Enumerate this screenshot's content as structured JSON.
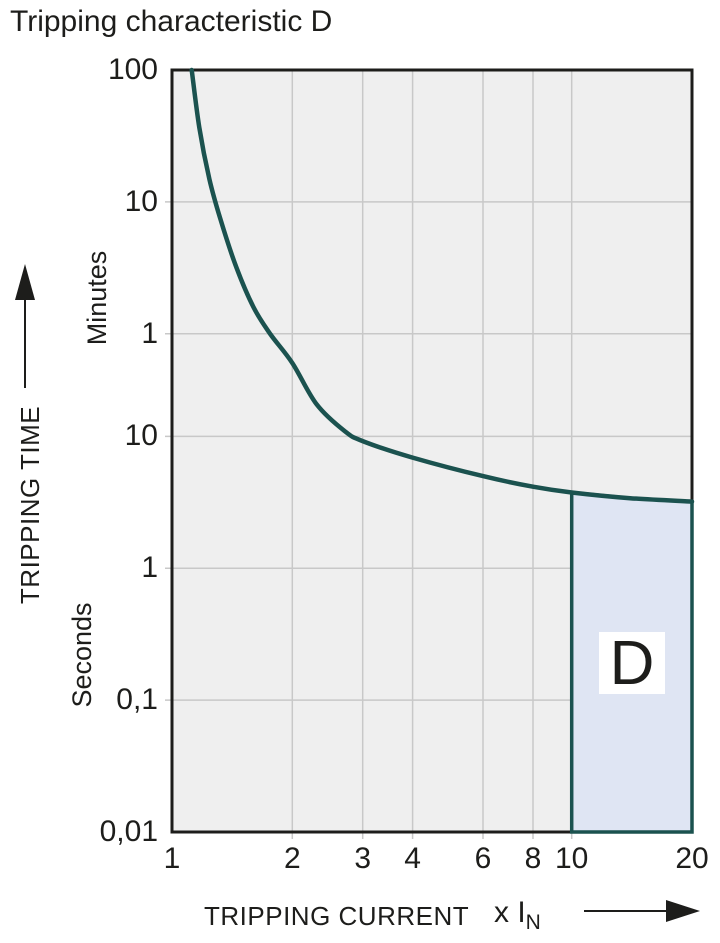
{
  "title": "Tripping characteristic D",
  "labels": {
    "y_axis_title": "TRIPPING TIME",
    "x_axis_title": "TRIPPING CURRENT",
    "x_unit_prefix": "x I",
    "x_unit_sub": "N",
    "minutes": "Minutes",
    "seconds": "Seconds",
    "region": "D"
  },
  "chart_data": {
    "type": "line",
    "title": "Tripping characteristic D",
    "x_axis": {
      "title": "TRIPPING CURRENT",
      "unit": "x IN",
      "scale": "log",
      "min": 1,
      "max": 20,
      "tick_labels": [
        "1",
        "2",
        "3",
        "4",
        "6",
        "8",
        "10",
        "20"
      ],
      "tick_values": [
        1,
        2,
        3,
        4,
        6,
        8,
        10,
        20
      ],
      "gridlines": [
        2,
        3,
        4,
        6,
        8,
        10
      ]
    },
    "y_axis": {
      "title": "TRIPPING TIME",
      "scale": "log",
      "min_seconds": 0.01,
      "max_seconds": 6000,
      "tick_labels": [
        "100",
        "10",
        "1",
        "10",
        "1",
        "0,1",
        "0,01"
      ],
      "tick_values_seconds": [
        6000,
        600,
        60,
        10,
        1,
        0.1,
        0.01
      ],
      "gridlines_seconds": [
        600,
        60,
        10,
        1,
        0.1
      ],
      "unit_sections": [
        {
          "label": "Minutes",
          "range_seconds": [
            60,
            6000
          ]
        },
        {
          "label": "Seconds",
          "range_seconds": [
            0.01,
            60
          ]
        }
      ]
    },
    "series": [
      {
        "name": "tripping-curve",
        "points_x_time_seconds": [
          [
            1.12,
            6000
          ],
          [
            1.17,
            2200
          ],
          [
            1.24,
            900
          ],
          [
            1.32,
            450
          ],
          [
            1.45,
            190
          ],
          [
            1.6,
            95
          ],
          [
            1.76,
            60
          ],
          [
            2.0,
            36
          ],
          [
            2.3,
            17.5
          ],
          [
            2.7,
            11
          ],
          [
            3.0,
            9.2
          ],
          [
            4.0,
            6.9
          ],
          [
            6.0,
            5.0
          ],
          [
            8.0,
            4.15
          ],
          [
            10.0,
            3.75
          ],
          [
            14.0,
            3.4
          ],
          [
            20.0,
            3.2
          ]
        ]
      }
    ],
    "region": {
      "label": "D",
      "x_from": 10,
      "x_to": 20,
      "time_from_seconds": 0.01,
      "top_boundary": "curve"
    },
    "grid": true,
    "legend": "none",
    "colors": {
      "curve": "#1b524f",
      "region_fill": "#dfe5f3",
      "region_border": "#1b524f",
      "grid": "#c8c8c8",
      "plot_bg": "#efefef",
      "axis": "#1d1d1b",
      "text": "#1d1d1b"
    }
  }
}
